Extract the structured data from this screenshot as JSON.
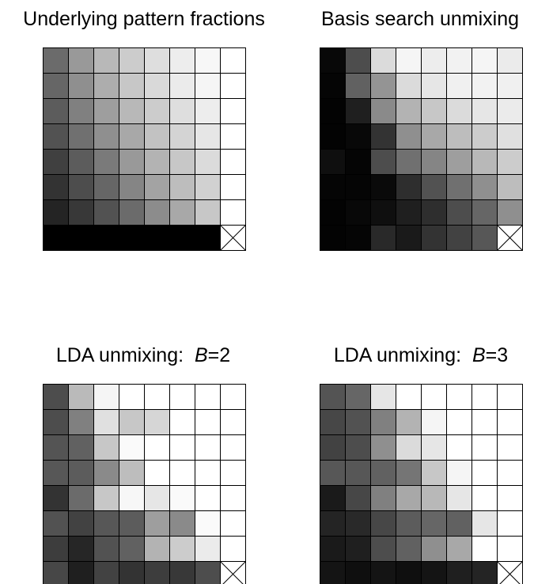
{
  "chart_data": [
    {
      "type": "heatmap",
      "title": "Underlying pattern fractions",
      "size": 8,
      "scale": "grayscale, 0 = black, 1 = white",
      "cells": [
        [
          0.42,
          0.6,
          0.72,
          0.8,
          0.87,
          0.93,
          0.97,
          1.0
        ],
        [
          0.4,
          0.56,
          0.68,
          0.78,
          0.85,
          0.92,
          0.96,
          1.0
        ],
        [
          0.36,
          0.5,
          0.62,
          0.72,
          0.8,
          0.87,
          0.93,
          1.0
        ],
        [
          0.32,
          0.44,
          0.56,
          0.66,
          0.76,
          0.83,
          0.9,
          1.0
        ],
        [
          0.25,
          0.36,
          0.48,
          0.6,
          0.7,
          0.78,
          0.86,
          1.0
        ],
        [
          0.2,
          0.3,
          0.4,
          0.52,
          0.64,
          0.74,
          0.82,
          1.0
        ],
        [
          0.14,
          0.22,
          0.32,
          0.42,
          0.55,
          0.66,
          0.78,
          1.0
        ],
        [
          0.0,
          0.0,
          0.0,
          0.0,
          0.0,
          0.0,
          0.0,
          null
        ]
      ],
      "merged_bottom_row": true
    },
    {
      "type": "heatmap",
      "title": "Basis search unmixing",
      "size": 8,
      "scale": "grayscale, 0 = black, 1 = white",
      "cells": [
        [
          0.03,
          0.3,
          0.86,
          0.96,
          0.93,
          0.95,
          0.96,
          0.92
        ],
        [
          0.02,
          0.38,
          0.58,
          0.86,
          0.9,
          0.94,
          0.95,
          0.94
        ],
        [
          0.01,
          0.12,
          0.54,
          0.7,
          0.78,
          0.86,
          0.9,
          0.92
        ],
        [
          0.01,
          0.03,
          0.2,
          0.56,
          0.66,
          0.74,
          0.8,
          0.88
        ],
        [
          0.06,
          0.02,
          0.3,
          0.44,
          0.52,
          0.62,
          0.72,
          0.8
        ],
        [
          0.02,
          0.02,
          0.04,
          0.18,
          0.32,
          0.44,
          0.56,
          0.74
        ],
        [
          0.01,
          0.03,
          0.06,
          0.12,
          0.18,
          0.3,
          0.4,
          0.56
        ],
        [
          0.01,
          0.02,
          0.16,
          0.1,
          0.2,
          0.26,
          0.34,
          null
        ]
      ],
      "merged_bottom_row": false
    },
    {
      "type": "heatmap",
      "title": "LDA unmixing:",
      "title_var": "B",
      "title_value": "=2",
      "size": 8,
      "scale": "grayscale, 0 = black, 1 = white",
      "cells": [
        [
          0.3,
          0.73,
          0.96,
          1.0,
          1.0,
          1.0,
          1.0,
          1.0
        ],
        [
          0.3,
          0.5,
          0.88,
          0.78,
          0.84,
          1.0,
          1.0,
          1.0
        ],
        [
          0.33,
          0.38,
          0.78,
          0.98,
          1.0,
          1.0,
          1.0,
          1.0
        ],
        [
          0.34,
          0.36,
          0.54,
          0.74,
          1.0,
          1.0,
          1.0,
          1.0
        ],
        [
          0.2,
          0.42,
          0.78,
          0.97,
          0.9,
          0.98,
          1.0,
          1.0
        ],
        [
          0.32,
          0.26,
          0.34,
          0.36,
          0.62,
          0.54,
          0.98,
          1.0
        ],
        [
          0.24,
          0.15,
          0.32,
          0.38,
          0.7,
          0.8,
          0.92,
          1.0
        ],
        [
          0.28,
          0.12,
          0.26,
          0.2,
          0.24,
          0.22,
          0.3,
          null
        ]
      ],
      "merged_bottom_row": false
    },
    {
      "type": "heatmap",
      "title": "LDA unmixing:",
      "title_var": "B",
      "title_value": "=3",
      "size": 8,
      "scale": "grayscale, 0 = black, 1 = white",
      "cells": [
        [
          0.33,
          0.4,
          0.9,
          1.0,
          1.0,
          1.0,
          1.0,
          1.0
        ],
        [
          0.28,
          0.32,
          0.5,
          0.7,
          0.96,
          1.0,
          1.0,
          1.0
        ],
        [
          0.26,
          0.3,
          0.56,
          0.86,
          0.9,
          1.0,
          1.0,
          1.0
        ],
        [
          0.34,
          0.34,
          0.38,
          0.46,
          0.78,
          0.96,
          1.0,
          1.0
        ],
        [
          0.1,
          0.28,
          0.5,
          0.66,
          0.72,
          0.9,
          1.0,
          1.0
        ],
        [
          0.14,
          0.16,
          0.28,
          0.36,
          0.4,
          0.38,
          0.9,
          1.0
        ],
        [
          0.1,
          0.12,
          0.3,
          0.38,
          0.56,
          0.66,
          1.0,
          1.0
        ],
        [
          0.08,
          0.06,
          0.08,
          0.06,
          0.08,
          0.12,
          0.14,
          null
        ]
      ],
      "merged_bottom_row": false
    }
  ]
}
